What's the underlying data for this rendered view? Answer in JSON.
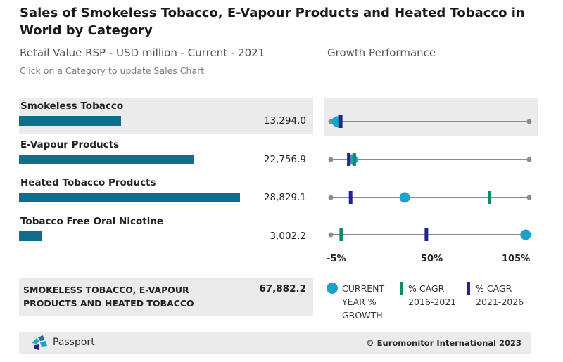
{
  "title": "Sales of Smokeless Tobacco, E-Vapour Products and Heated Tobacco in World by Category",
  "subtitle": "Retail Value RSP - USD million - Current - 2021",
  "growth_title": "Growth Performance",
  "hint": "Click on a Category to update Sales Chart",
  "categories": [
    {
      "label": "Smokeless Tobacco",
      "value": "13,294.0",
      "selected": true
    },
    {
      "label": "E-Vapour Products",
      "value": "22,756.9",
      "selected": false
    },
    {
      "label": "Heated Tobacco Products",
      "value": "28,829.1",
      "selected": false
    },
    {
      "label": "Tobacco Free Oral Nicotine",
      "value": "3,002.2",
      "selected": false
    }
  ],
  "chart_data": {
    "type": "bar",
    "categories": [
      "Smokeless Tobacco",
      "E-Vapour Products",
      "Heated Tobacco Products",
      "Tobacco Free Oral Nicotine"
    ],
    "values": [
      13294.0,
      22756.9,
      28829.1,
      3002.2
    ],
    "growth": {
      "axis_ticks": [
        "-5%",
        "50%",
        "105%"
      ],
      "range": [
        -5,
        105
      ],
      "series": [
        {
          "name": "CURRENT YEAR % GROWTH",
          "values": [
            -1.5,
            7,
            36,
            103
          ]
        },
        {
          "name": "% CAGR 2016-2021",
          "values": [
            0,
            8,
            83,
            0.8
          ]
        },
        {
          "name": "% CAGR 2021-2026",
          "values": [
            0.5,
            5,
            6,
            48
          ]
        }
      ]
    }
  },
  "axis_labels": [
    "-5%",
    "50%",
    "105%"
  ],
  "total": {
    "label": "SMOKELESS TOBACCO, E-VAPOUR PRODUCTS AND HEATED TOBACCO",
    "value": "67,882.2"
  },
  "legend": {
    "current": "CURRENT YEAR % GROWTH",
    "cagr_past": "% CAGR 2016-2021",
    "cagr_future": "% CAGR 2021-2026"
  },
  "colors": {
    "bar": "#0f6f8b",
    "current": "#1aa1cc",
    "cagr_past": "#0e8a6e",
    "cagr_future": "#23238f",
    "track": "#8c8c8c"
  },
  "footer": {
    "brand": "Passport",
    "copyright": "© Euromonitor International 2023"
  }
}
